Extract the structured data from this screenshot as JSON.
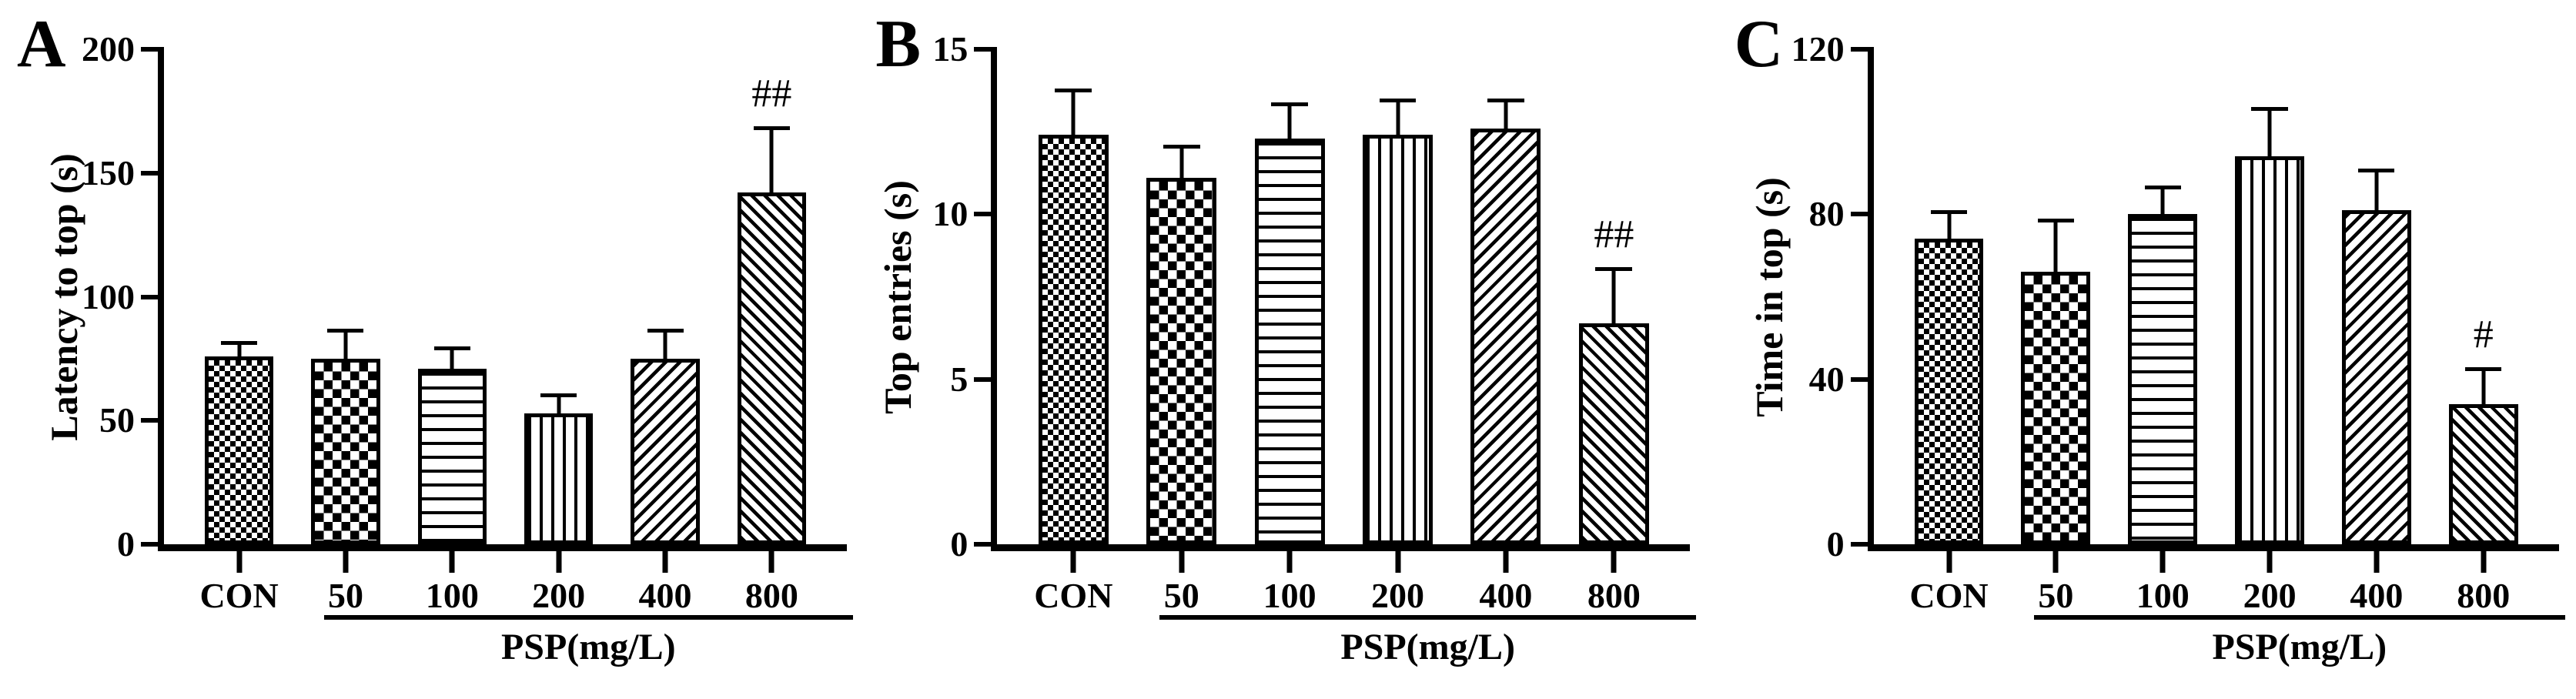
{
  "figure": {
    "background_color": "#ffffff",
    "ink_color": "#000000",
    "bar_fill_color": "#ffffff",
    "description": "Three-panel bar chart figure with patterned bars and SEM error bars"
  },
  "chart_data": [
    {
      "type": "bar",
      "panel_label": "A",
      "ylabel": "Latency to top (s)",
      "xgroup_label": "PSP(mg/L)",
      "categories": [
        "CON",
        "50",
        "100",
        "200",
        "400",
        "800"
      ],
      "values": [
        76,
        75,
        71,
        53,
        75,
        142
      ],
      "errors": [
        6,
        12,
        9,
        8,
        12,
        27
      ],
      "annotations": [
        "",
        "",
        "",
        "",
        "",
        "##"
      ],
      "patterns": [
        "fine-checkerboard",
        "coarse-checkerboard",
        "horizontal-lines",
        "vertical-lines",
        "diagonal-up",
        "diagonal-down"
      ],
      "ylim": [
        0,
        200
      ],
      "yticks": [
        0,
        50,
        100,
        150,
        200
      ],
      "grid": false,
      "legend": "none"
    },
    {
      "type": "bar",
      "panel_label": "B",
      "ylabel": "Top entries (s)",
      "xgroup_label": "PSP(mg/L)",
      "categories": [
        "CON",
        "50",
        "100",
        "200",
        "400",
        "800"
      ],
      "values": [
        12.4,
        11.1,
        12.3,
        12.4,
        12.6,
        6.7
      ],
      "errors": [
        1.4,
        1.0,
        1.1,
        1.1,
        0.9,
        1.7
      ],
      "annotations": [
        "",
        "",
        "",
        "",
        "",
        "##"
      ],
      "patterns": [
        "fine-checkerboard",
        "coarse-checkerboard",
        "horizontal-lines",
        "vertical-lines",
        "diagonal-up",
        "diagonal-down"
      ],
      "ylim": [
        0,
        15
      ],
      "yticks": [
        0,
        5,
        10,
        15
      ],
      "grid": false,
      "legend": "none"
    },
    {
      "type": "bar",
      "panel_label": "C",
      "ylabel": "Time in top (s)",
      "xgroup_label": "PSP(mg/L)",
      "categories": [
        "CON",
        "50",
        "100",
        "200",
        "400",
        "800"
      ],
      "values": [
        74,
        66,
        80,
        94,
        81,
        34
      ],
      "errors": [
        7,
        13,
        7,
        12,
        10,
        9
      ],
      "annotations": [
        "",
        "",
        "",
        "",
        "",
        "#"
      ],
      "patterns": [
        "fine-checkerboard",
        "coarse-checkerboard",
        "horizontal-lines",
        "vertical-lines",
        "diagonal-up",
        "diagonal-down"
      ],
      "ylim": [
        0,
        120
      ],
      "yticks": [
        0,
        40,
        80,
        120
      ],
      "grid": false,
      "legend": "none"
    }
  ]
}
